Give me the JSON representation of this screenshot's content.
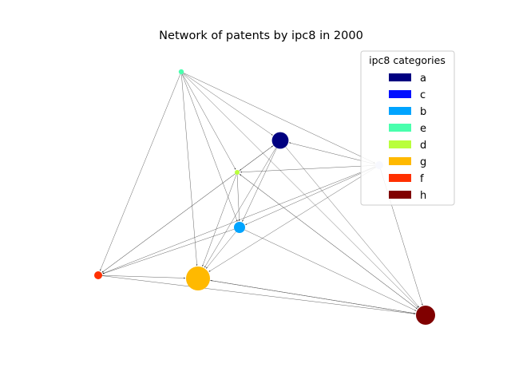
{
  "chart_data": {
    "type": "network",
    "title": "Network of patents by ipc8 in 2000",
    "legend": {
      "title": "ipc8 categories",
      "placement": "top-right",
      "entries": [
        {
          "label": "a",
          "color": "#000080"
        },
        {
          "label": "c",
          "color": "#0010ff"
        },
        {
          "label": "b",
          "color": "#00a4ff"
        },
        {
          "label": "e",
          "color": "#49ffad"
        },
        {
          "label": "d",
          "color": "#b9ff3c"
        },
        {
          "label": "g",
          "color": "#ffb900"
        },
        {
          "label": "f",
          "color": "#ff3000"
        },
        {
          "label": "h",
          "color": "#800000"
        }
      ]
    },
    "nodes": [
      {
        "id": "a",
        "color": "#000080",
        "relative_size": 0.52
      },
      {
        "id": "c",
        "color": "#c8ccf8",
        "relative_size": 0.25
      },
      {
        "id": "b",
        "color": "#00a4ff",
        "relative_size": 0.35
      },
      {
        "id": "e",
        "color": "#49ffad",
        "relative_size": 0.16
      },
      {
        "id": "d",
        "color": "#b9ff3c",
        "relative_size": 0.12
      },
      {
        "id": "g",
        "color": "#ffb900",
        "relative_size": 0.75
      },
      {
        "id": "f",
        "color": "#ff3000",
        "relative_size": 0.25
      },
      {
        "id": "h",
        "color": "#800000",
        "relative_size": 0.6
      }
    ],
    "edges": [
      [
        "e",
        "a"
      ],
      [
        "e",
        "d"
      ],
      [
        "e",
        "b"
      ],
      [
        "e",
        "g"
      ],
      [
        "e",
        "f"
      ],
      [
        "e",
        "h"
      ],
      [
        "e",
        "c"
      ],
      [
        "c",
        "a"
      ],
      [
        "c",
        "d"
      ],
      [
        "c",
        "b"
      ],
      [
        "c",
        "g"
      ],
      [
        "c",
        "f"
      ],
      [
        "c",
        "h"
      ],
      [
        "a",
        "b"
      ],
      [
        "a",
        "g"
      ],
      [
        "a",
        "f"
      ],
      [
        "a",
        "h"
      ],
      [
        "a",
        "d"
      ],
      [
        "d",
        "a"
      ],
      [
        "d",
        "b"
      ],
      [
        "d",
        "g"
      ],
      [
        "d",
        "f"
      ],
      [
        "d",
        "h"
      ],
      [
        "b",
        "g"
      ],
      [
        "b",
        "h"
      ],
      [
        "b",
        "f"
      ],
      [
        "f",
        "g"
      ],
      [
        "f",
        "h"
      ],
      [
        "g",
        "h"
      ],
      [
        "h",
        "g"
      ],
      [
        "h",
        "d"
      ]
    ]
  }
}
